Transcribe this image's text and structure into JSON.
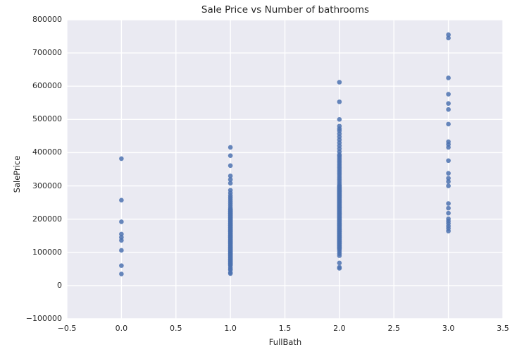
{
  "chart_data": {
    "type": "scatter",
    "title": "Sale Price vs Number of bathrooms",
    "xlabel": "FullBath",
    "ylabel": "SalePrice",
    "xlim": [
      -0.5,
      3.5
    ],
    "ylim": [
      -100000,
      800000
    ],
    "grid": true,
    "legend": false,
    "background_color": "#eaeaf2",
    "gridline_color": "#ffffff",
    "point_color": "#4c72b0",
    "point_opacity": 0.85,
    "point_radius": 3.3,
    "x_ticks": [
      -0.5,
      0.0,
      0.5,
      1.0,
      1.5,
      2.0,
      2.5,
      3.0,
      3.5
    ],
    "x_tick_labels": [
      "−0.5",
      "0.0",
      "0.5",
      "1.0",
      "1.5",
      "2.0",
      "2.5",
      "3.0",
      "3.5"
    ],
    "y_ticks": [
      -100000,
      0,
      100000,
      200000,
      300000,
      400000,
      500000,
      600000,
      700000,
      800000
    ],
    "y_tick_labels": [
      "−100000",
      "0",
      "100000",
      "200000",
      "300000",
      "400000",
      "500000",
      "600000",
      "700000",
      "800000"
    ],
    "x_values": [
      0,
      1,
      2,
      3
    ],
    "groups": [
      {
        "x": 0,
        "points": [
          382000,
          257000,
          192000,
          155000,
          145000,
          136000,
          106000,
          60000,
          35000
        ],
        "strips": []
      },
      {
        "x": 1,
        "points": [
          416000,
          391000,
          361000,
          330000,
          319000,
          308000,
          287000,
          279000,
          271000,
          50000,
          47000,
          39000,
          36000
        ],
        "strips": [
          {
            "from": 265000,
            "to": 55000,
            "step": 6000
          },
          {
            "from": 230000,
            "to": 60000,
            "step": 3000
          }
        ]
      },
      {
        "x": 2,
        "points": [
          612000,
          553000,
          500000,
          480000,
          472000,
          68000,
          55000,
          52000
        ],
        "strips": [
          {
            "from": 466000,
            "to": 393000,
            "step": 9000
          },
          {
            "from": 390000,
            "to": 89000,
            "step": 6000
          },
          {
            "from": 300000,
            "to": 110000,
            "step": 3000
          }
        ]
      },
      {
        "x": 3,
        "points": [
          755000,
          745000,
          625000,
          576000,
          548000,
          530000,
          486000,
          433000,
          425000,
          416000,
          376000,
          338000,
          323000,
          313000,
          300000,
          247000,
          233000,
          218000,
          201000,
          194000,
          187000,
          179000,
          172000,
          164000
        ],
        "strips": []
      }
    ]
  }
}
